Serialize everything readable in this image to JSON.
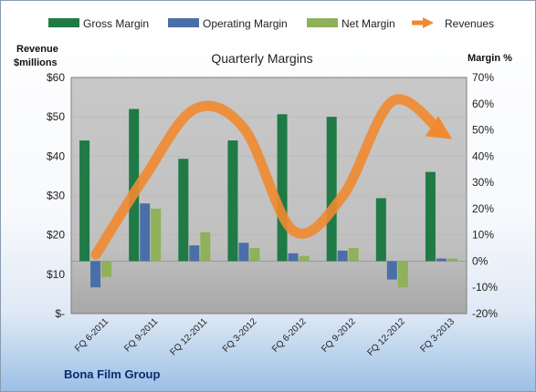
{
  "chart_data": {
    "type": "bar",
    "title": "Quarterly Margins",
    "categories": [
      "FQ 6-2011",
      "FQ 9-2011",
      "FQ 12-2011",
      "FQ 3-2012",
      "FQ 6-2012",
      "FQ 9-2012",
      "FQ 12-2012",
      "FQ 3-2013"
    ],
    "series": [
      {
        "name": "Gross Margin",
        "axis": "right",
        "color": "#1f7a45",
        "values": [
          46,
          58,
          39,
          46,
          56,
          55,
          24,
          34
        ]
      },
      {
        "name": "Operating Margin",
        "axis": "right",
        "color": "#4a6fa8",
        "values": [
          -10,
          22,
          6,
          7,
          3,
          4,
          -7,
          1
        ]
      },
      {
        "name": "Net Margin",
        "axis": "right",
        "color": "#8fb15a",
        "values": [
          -6,
          20,
          11,
          5,
          2,
          5,
          -10,
          1
        ]
      },
      {
        "name": "Revenues",
        "axis": "left",
        "type": "line",
        "color": "#f08a30",
        "values": [
          15,
          35,
          52,
          47,
          21,
          30,
          54,
          46
        ]
      }
    ],
    "y_left": {
      "label_line1": "Revenue",
      "label_line2": "$millions",
      "ticks": [
        "$-",
        "$10",
        "$20",
        "$30",
        "$40",
        "$50",
        "$60"
      ],
      "min": 0,
      "max": 60
    },
    "y_right": {
      "label": "Margin %",
      "ticks": [
        "-20%",
        "-10%",
        "0%",
        "10%",
        "20%",
        "30%",
        "40%",
        "50%",
        "60%",
        "70%"
      ],
      "min": -20,
      "max": 70
    },
    "legend_position": "top",
    "grid": true
  },
  "footer": {
    "company": "Bona Film Group"
  },
  "colors": {
    "plot_bg": "#c3c3c3",
    "zero_line": "#9a9a9a",
    "gridline": "#b8b8b8"
  }
}
